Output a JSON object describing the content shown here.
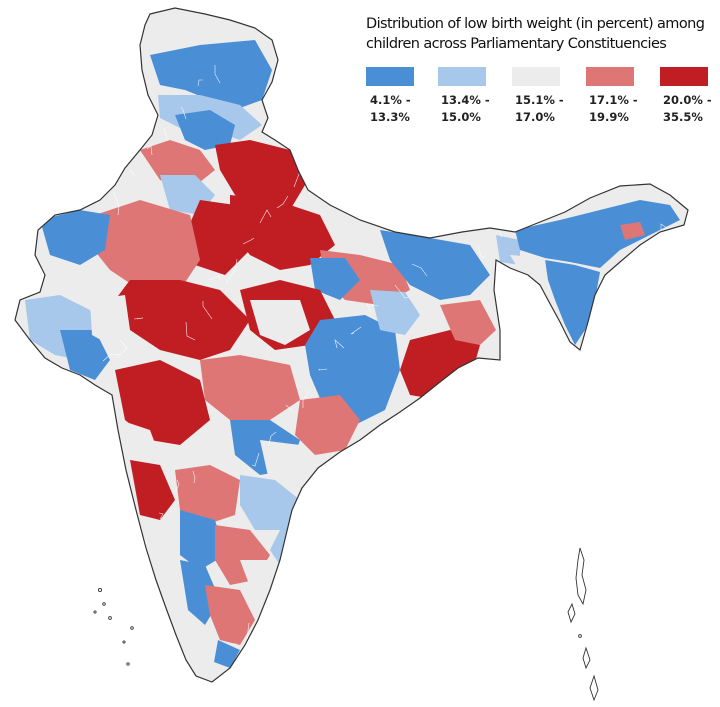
{
  "legend": {
    "title_line1": "Distribution of low birth weight (in percent) among",
    "title_line2": "children across Parliamentary Constituencies",
    "bins": [
      {
        "color": "#4a8fd6",
        "from": "4.1% -",
        "to": "13.3%"
      },
      {
        "color": "#a7c8ea",
        "from": "13.4% -",
        "to": "15.0%"
      },
      {
        "color": "#ececec",
        "from": "15.1% -",
        "to": "17.0%"
      },
      {
        "color": "#df7676",
        "from": "17.1% -",
        "to": "19.9%"
      },
      {
        "color": "#c01e23",
        "from": "20.0% -",
        "to": "35.5%"
      }
    ]
  },
  "colors": {
    "border": "#333333",
    "inner_border": "#ffffff"
  }
}
